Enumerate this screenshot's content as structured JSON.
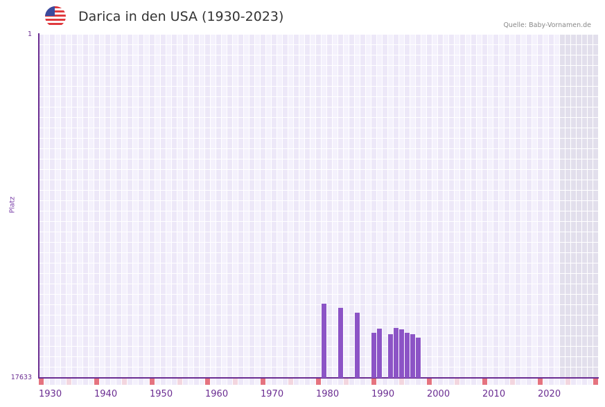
{
  "header": {
    "title": "Darica in den USA (1930-2023)",
    "source": "Quelle: Baby-Vornamen.de",
    "flag_icon": "us-flag-icon"
  },
  "colors": {
    "bar": "#8c54c6",
    "axis": "#6a2c91",
    "decade_marker": "#e5737f",
    "half_decade_marker": "#f3d6df",
    "grid_a": "#ede8f8",
    "grid_b": "#f4f1fc",
    "future_shade": "#e2dfec"
  },
  "chart_data": {
    "type": "bar",
    "title": "Darica in den USA (1930-2023)",
    "xlabel": "",
    "ylabel": "Platz",
    "y_inverted": true,
    "ylim": [
      1,
      17633
    ],
    "y_ticks": [
      "1",
      "17633"
    ],
    "x_range": [
      1930,
      2030
    ],
    "x_ticks": [
      "1930",
      "1940",
      "1950",
      "1960",
      "1970",
      "1980",
      "1990",
      "2000",
      "2010",
      "2020"
    ],
    "shaded_from_year": 2024,
    "grid": true,
    "legend": "none",
    "categories": [
      1981,
      1984,
      1987,
      1990,
      1991,
      1993,
      1994,
      1995,
      1996,
      1997,
      1998
    ],
    "values": [
      13821,
      14035,
      14284,
      15317,
      15103,
      15388,
      15068,
      15139,
      15317,
      15388,
      15566
    ]
  }
}
